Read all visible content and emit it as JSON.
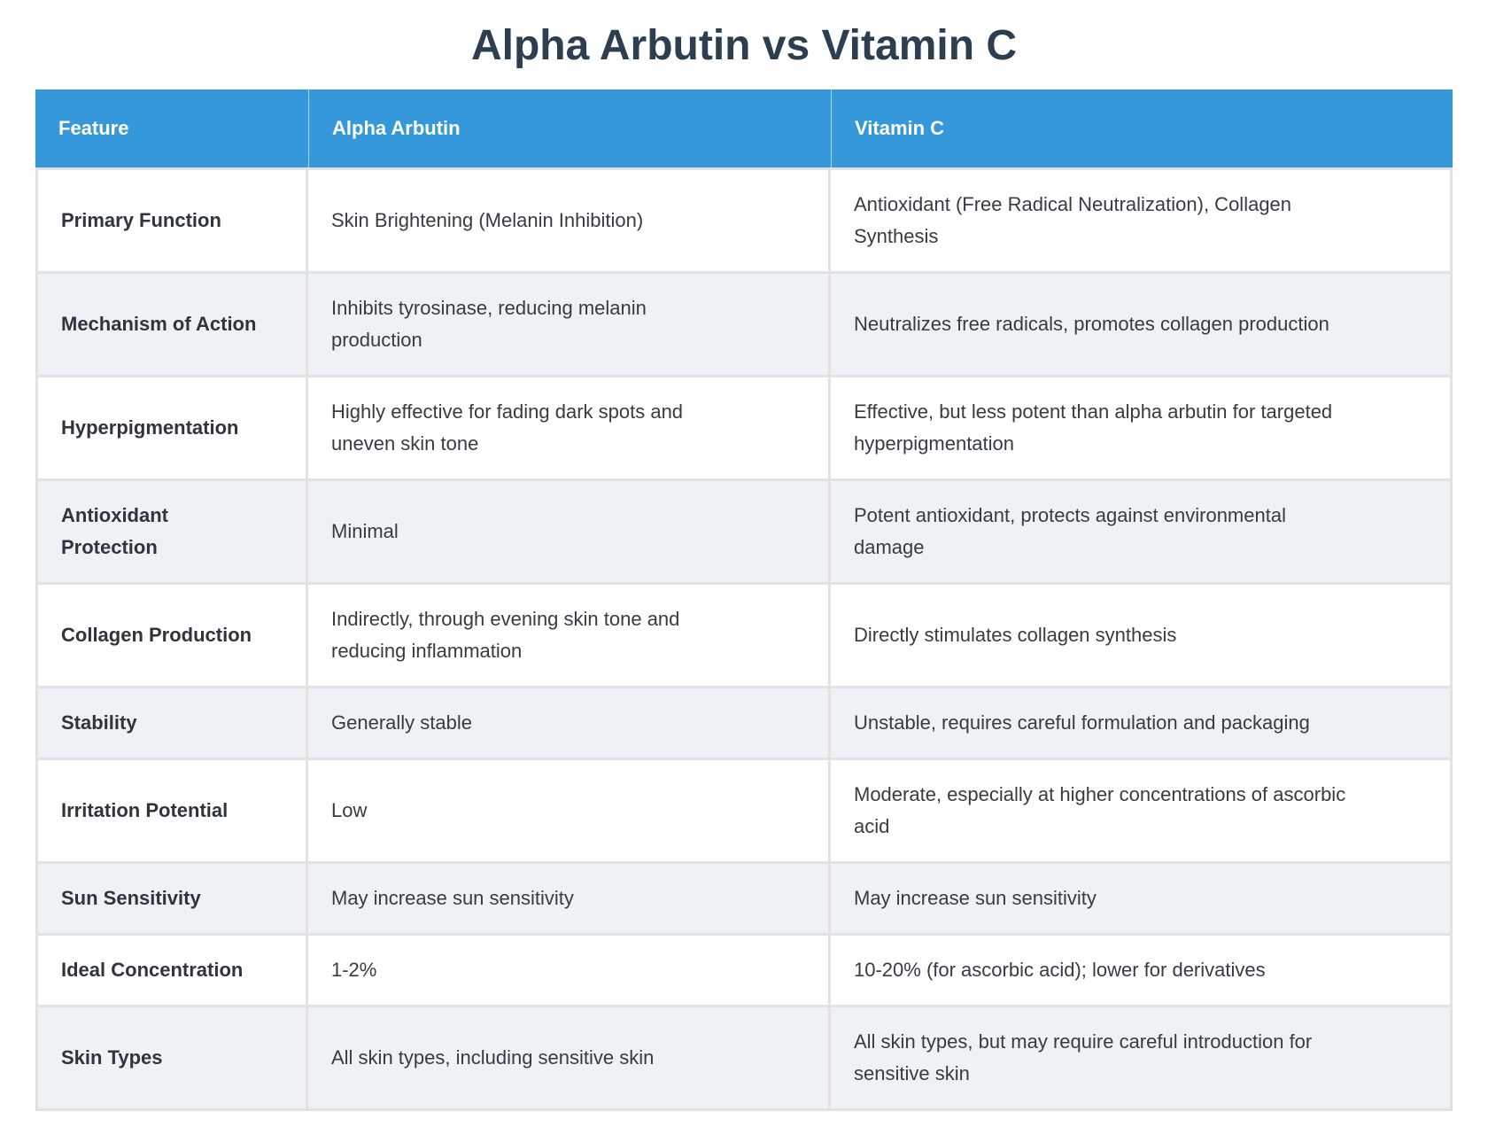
{
  "page": {
    "title": "Alpha Arbutin vs Vitamin C"
  },
  "colors": {
    "header_bg": "#3498db",
    "header_text": "#ffffff",
    "title_text": "#2c3e50",
    "body_text": "#363c42",
    "stripe_row_bg": "#eef2f7",
    "grid_line": "#e2e2e2"
  },
  "table": {
    "columns": [
      {
        "label": "Feature"
      },
      {
        "label": "Alpha Arbutin"
      },
      {
        "label": "Vitamin C"
      }
    ],
    "rows": [
      {
        "feature": "Primary Function",
        "alpha_arbutin": "Skin Brightening (Melanin Inhibition)",
        "vitamin_c": "Antioxidant (Free Radical Neutralization), Collagen\nSynthesis"
      },
      {
        "feature": "Mechanism of Action",
        "alpha_arbutin": "Inhibits tyrosinase, reducing melanin\nproduction",
        "vitamin_c": "Neutralizes free radicals, promotes collagen production"
      },
      {
        "feature": "Hyperpigmentation",
        "alpha_arbutin": "Highly effective for fading dark spots and\nuneven skin tone",
        "vitamin_c": "Effective, but less potent than alpha arbutin for targeted\nhyperpigmentation"
      },
      {
        "feature": "Antioxidant\nProtection",
        "alpha_arbutin": "Minimal",
        "vitamin_c": "Potent antioxidant, protects against environmental\ndamage"
      },
      {
        "feature": "Collagen Production",
        "alpha_arbutin": "Indirectly, through evening skin tone and\nreducing inflammation",
        "vitamin_c": "Directly stimulates collagen synthesis"
      },
      {
        "feature": "Stability",
        "alpha_arbutin": "Generally stable",
        "vitamin_c": "Unstable, requires careful formulation and packaging"
      },
      {
        "feature": "Irritation Potential",
        "alpha_arbutin": "Low",
        "vitamin_c": "Moderate, especially at higher concentrations of ascorbic\nacid"
      },
      {
        "feature": "Sun Sensitivity",
        "alpha_arbutin": "May increase sun sensitivity",
        "vitamin_c": "May increase sun sensitivity"
      },
      {
        "feature": "Ideal Concentration",
        "alpha_arbutin": "1-2%",
        "vitamin_c": "10-20% (for ascorbic acid); lower for derivatives"
      },
      {
        "feature": "Skin Types",
        "alpha_arbutin": "All skin types, including sensitive skin",
        "vitamin_c": "All skin types, but may require careful introduction for\nsensitive skin"
      }
    ]
  }
}
